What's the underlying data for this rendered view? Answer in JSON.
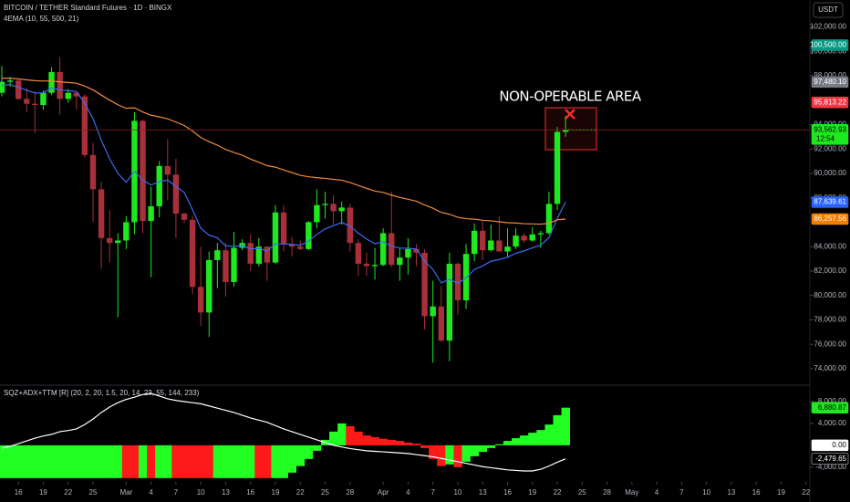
{
  "toolbar": {
    "currency": "USDT"
  },
  "chart_data": [
    {
      "type": "candlestick",
      "title": "BITCOIN / TETHER Standard Futures · 1D · BINGX",
      "subtitle": "4EMA (10, 55, 500, 21)",
      "annotation": "NON-OPERABLE AREA",
      "countdown": "12:54",
      "x": [
        "Feb 14",
        "Feb 15",
        "Feb 16",
        "Feb 17",
        "Feb 18",
        "Feb 19",
        "Feb 20",
        "Feb 21",
        "Feb 22",
        "Feb 23",
        "Feb 24",
        "Feb 25",
        "Feb 26",
        "Feb 27",
        "Feb 28",
        "Mar 1",
        "Mar 2",
        "Mar 3",
        "Mar 4",
        "Mar 5",
        "Mar 6",
        "Mar 7",
        "Mar 8",
        "Mar 9",
        "Mar 10",
        "Mar 11",
        "Mar 12",
        "Mar 13",
        "Mar 14",
        "Mar 15",
        "Mar 16",
        "Mar 17",
        "Mar 18",
        "Mar 19",
        "Mar 20",
        "Mar 21",
        "Mar 22",
        "Mar 23",
        "Mar 24",
        "Mar 25",
        "Mar 26",
        "Mar 27",
        "Mar 28",
        "Mar 29",
        "Mar 30",
        "Mar 31",
        "Apr 1",
        "Apr 2",
        "Apr 3",
        "Apr 4",
        "Apr 5",
        "Apr 6",
        "Apr 7",
        "Apr 8",
        "Apr 9",
        "Apr 10",
        "Apr 11",
        "Apr 12",
        "Apr 13",
        "Apr 14",
        "Apr 15",
        "Apr 16",
        "Apr 17",
        "Apr 18",
        "Apr 19",
        "Apr 20",
        "Apr 21",
        "Apr 22",
        "Apr 23"
      ],
      "open": [
        96600,
        97500,
        97600,
        96100,
        95700,
        95600,
        96600,
        98300,
        96100,
        96600,
        96300,
        91500,
        88700,
        84700,
        84300,
        84500,
        86000,
        94300,
        86100,
        87300,
        90600,
        89900,
        86700,
        86200,
        80700,
        78600,
        82900,
        83700,
        81100,
        83900,
        84300,
        82600,
        84000,
        82700,
        86800,
        84200,
        84000,
        83800,
        86000,
        87400,
        87500,
        86900,
        87200,
        84300,
        82600,
        82400,
        82500,
        85100,
        82500,
        83100,
        83800,
        83500,
        78300,
        79100,
        76300,
        82600,
        79600,
        83400,
        85300,
        83700,
        84500,
        83600,
        84000,
        84900,
        84500,
        85000,
        85100,
        87500,
        93400
      ],
      "high": [
        98800,
        97900,
        97700,
        97000,
        96700,
        96800,
        98700,
        99500,
        96900,
        96700,
        96500,
        92500,
        89300,
        87000,
        85100,
        86500,
        95000,
        94400,
        88900,
        91000,
        92800,
        91200,
        86800,
        86500,
        84000,
        83600,
        84300,
        84300,
        85200,
        84600,
        85000,
        84700,
        84000,
        87400,
        87400,
        84800,
        84500,
        86100,
        88700,
        88500,
        88200,
        87700,
        87500,
        84600,
        83500,
        83900,
        85500,
        88500,
        83900,
        84700,
        84200,
        83800,
        81200,
        80800,
        83500,
        82700,
        84200,
        85900,
        86100,
        85800,
        86500,
        85500,
        85500,
        85100,
        85600,
        85300,
        88500,
        93800,
        94700
      ],
      "low": [
        96300,
        97100,
        96000,
        95000,
        93300,
        95200,
        96400,
        94800,
        95800,
        95200,
        91300,
        86000,
        82200,
        82700,
        78200,
        83800,
        85000,
        85100,
        81500,
        86400,
        87800,
        84700,
        85900,
        80100,
        77500,
        76600,
        80600,
        79900,
        80700,
        83700,
        82000,
        82400,
        81200,
        82600,
        83600,
        83200,
        83700,
        83700,
        85500,
        86300,
        85800,
        85800,
        83600,
        81600,
        81600,
        81300,
        82400,
        82300,
        81200,
        81700,
        82400,
        77200,
        74500,
        76200,
        74600,
        78400,
        78900,
        82800,
        82900,
        83600,
        83600,
        83100,
        83800,
        84300,
        84400,
        83900,
        85000,
        87000,
        93000
      ],
      "close": [
        97500,
        97600,
        96100,
        95700,
        95600,
        96600,
        98300,
        96100,
        96600,
        96300,
        91500,
        88700,
        84700,
        84300,
        84500,
        86000,
        94300,
        86100,
        87300,
        90600,
        89900,
        86700,
        86200,
        80700,
        78600,
        82900,
        83700,
        81100,
        83900,
        84300,
        82600,
        84000,
        82700,
        86800,
        84200,
        84000,
        83800,
        86000,
        87400,
        87500,
        86900,
        87200,
        84300,
        82600,
        82400,
        82500,
        85100,
        82500,
        83100,
        83800,
        83500,
        78300,
        79100,
        76300,
        82600,
        79600,
        83400,
        85300,
        83700,
        84500,
        83600,
        84000,
        84900,
        84500,
        85000,
        85100,
        87500,
        93400,
        93562.93
      ],
      "up_color": "#1ee81e",
      "down_color": "#a8303a",
      "series": [
        {
          "color": "#3b6cf0",
          "values": [
            97200,
            97270,
            97050,
            96800,
            96580,
            96590,
            96990,
            96830,
            96780,
            96700,
            95750,
            94480,
            92700,
            91200,
            89990,
            89270,
            90180,
            89440,
            89050,
            89330,
            89440,
            88940,
            88440,
            87030,
            85500,
            84940,
            84720,
            84060,
            84030,
            84080,
            83810,
            83850,
            83640,
            84220,
            84220,
            84180,
            84110,
            84450,
            84990,
            85450,
            85710,
            85980,
            85670,
            85110,
            84620,
            84240,
            84400,
            84050,
            83880,
            83870,
            83800,
            82800,
            82130,
            81030,
            81320,
            80990,
            81430,
            82130,
            82420,
            82800,
            82940,
            83130,
            83450,
            83650,
            83900,
            84120,
            84740,
            86320,
            87639.61
          ]
        },
        {
          "color": "#f08a3c",
          "values": [
            97800,
            97790,
            97730,
            97660,
            97590,
            97560,
            97580,
            97490,
            97440,
            97380,
            97150,
            96840,
            96410,
            96000,
            95620,
            95330,
            95370,
            95030,
            94760,
            94630,
            94470,
            94200,
            93930,
            93460,
            92940,
            92600,
            92310,
            91950,
            91710,
            91490,
            91170,
            90910,
            90630,
            90510,
            90280,
            90060,
            89840,
            89720,
            89650,
            89590,
            89510,
            89440,
            89250,
            89010,
            88770,
            88550,
            88440,
            88220,
            88030,
            87880,
            87720,
            87410,
            87150,
            86800,
            86650,
            86400,
            86290,
            86250,
            86160,
            86110,
            86030,
            85960,
            85930,
            85880,
            85860,
            85840,
            85900,
            86200,
            86257.56
          ]
        }
      ],
      "ylim": [
        72800,
        103900
      ],
      "yticks": [
        {
          "value": 102000,
          "label": "102,000.00"
        },
        {
          "value": 100000,
          "label": "100,000.00"
        },
        {
          "value": 98000,
          "label": "98,000.00"
        },
        {
          "value": 94000,
          "label": "94,000.00"
        },
        {
          "value": 92000,
          "label": "92,000.00"
        },
        {
          "value": 90000,
          "label": "90,000.00"
        },
        {
          "value": 88000,
          "label": "88,000.00"
        },
        {
          "value": 84000,
          "label": "84,000.00"
        },
        {
          "value": 82000,
          "label": "82,000.00"
        },
        {
          "value": 80000,
          "label": "80,000.00"
        },
        {
          "value": 78000,
          "label": "78,000.00"
        },
        {
          "value": 76000,
          "label": "76,000.00"
        },
        {
          "value": 74000,
          "label": "74,000.00"
        }
      ],
      "xticks": [
        {
          "value": "Feb 16",
          "label": "16"
        },
        {
          "value": "Feb 19",
          "label": "19"
        },
        {
          "value": "Feb 22",
          "label": "22"
        },
        {
          "value": "Feb 25",
          "label": "25"
        },
        {
          "value": "Mar 1",
          "label": "Mar"
        },
        {
          "value": "Mar 4",
          "label": "4"
        },
        {
          "value": "Mar 7",
          "label": "7"
        },
        {
          "value": "Mar 10",
          "label": "10"
        },
        {
          "value": "Mar 13",
          "label": "13"
        },
        {
          "value": "Mar 16",
          "label": "16"
        },
        {
          "value": "Mar 19",
          "label": "19"
        },
        {
          "value": "Mar 22",
          "label": "22"
        },
        {
          "value": "Mar 25",
          "label": "25"
        },
        {
          "value": "Mar 28",
          "label": "28"
        },
        {
          "value": "Apr 1",
          "label": "Apr"
        },
        {
          "value": "Apr 4",
          "label": "4"
        },
        {
          "value": "Apr 7",
          "label": "7"
        },
        {
          "value": "Apr 10",
          "label": "10"
        },
        {
          "value": "Apr 13",
          "label": "13"
        },
        {
          "value": "Apr 16",
          "label": "16"
        },
        {
          "value": "Apr 19",
          "label": "19"
        },
        {
          "value": "Apr 22",
          "label": "22"
        },
        {
          "value": "Apr 25",
          "label": "25"
        },
        {
          "value": "Apr 28",
          "label": "28"
        },
        {
          "value": "May 1",
          "label": "May"
        },
        {
          "value": "May 4",
          "label": "4"
        },
        {
          "value": "May 7",
          "label": "7"
        },
        {
          "value": "May 10",
          "label": "10"
        },
        {
          "value": "May 13",
          "label": "13"
        },
        {
          "value": "May 16",
          "label": "16"
        },
        {
          "value": "May 19",
          "label": "19"
        },
        {
          "value": "May 22",
          "label": "22"
        }
      ],
      "grid": false,
      "price_labels": [
        {
          "value": 100500,
          "label": "100,500.00",
          "color": "#089981",
          "text_color": "#ffffff"
        },
        {
          "value": 97480.1,
          "label": "97,480.10",
          "color": "#787b86",
          "text_color": "#ffffff"
        },
        {
          "value": 95813.22,
          "label": "95,813.22",
          "color": "#f23645",
          "text_color": "#ffffff"
        },
        {
          "value": 93562.93,
          "label": "93,562.93",
          "color": "#1ee81e",
          "text_color": "#000000"
        },
        {
          "value": 87639.61,
          "label": "87,639.61",
          "color": "#2962ff",
          "text_color": "#ffffff"
        },
        {
          "value": 86257.56,
          "label": "86,257.56",
          "color": "#f57c00",
          "text_color": "#ffffff"
        }
      ]
    },
    {
      "type": "bar",
      "title": "SQZ+ADX+TTM [R] (20, 2, 20, 1.5, 20, 14, 23, 55, 144, 233)",
      "values": [
        -6000,
        -6000,
        -6000,
        -6000,
        -6000,
        -6000,
        -6000,
        -6000,
        -6000,
        -6000,
        -6000,
        -6000,
        -6000,
        -6000,
        -6000,
        -6000,
        -6000,
        -6000,
        -6000,
        -6000,
        -6000,
        -6000,
        -6000,
        -6000,
        -6000,
        -6000,
        -6000,
        -6000,
        -6000,
        -6000,
        -6000,
        -6000,
        -6000,
        -6000,
        -6000,
        -5000,
        -3800,
        -2500,
        -1000,
        1000,
        2500,
        4000,
        3500,
        2500,
        1800,
        1500,
        1200,
        1000,
        800,
        500,
        300,
        -500,
        -2500,
        -3800,
        -3500,
        -4000,
        -3000,
        -2000,
        -1200,
        -500,
        200,
        800,
        1300,
        1800,
        2300,
        2800,
        3800,
        5500,
        6880.87
      ],
      "colors": [
        "#22ff22",
        "#22ff22",
        "#22ff22",
        "#22ff22",
        "#22ff22",
        "#22ff22",
        "#22ff22",
        "#22ff22",
        "#22ff22",
        "#22ff22",
        "#22ff22",
        "#22ff22",
        "#22ff22",
        "#22ff22",
        "#22ff22",
        "#ff1a1a",
        "#ff1a1a",
        "#22ff22",
        "#ff1a1a",
        "#22ff22",
        "#22ff22",
        "#ff1a1a",
        "#ff1a1a",
        "#ff1a1a",
        "#ff1a1a",
        "#ff1a1a",
        "#22ff22",
        "#22ff22",
        "#22ff22",
        "#22ff22",
        "#22ff22",
        "#ff1a1a",
        "#ff1a1a",
        "#22ff22",
        "#22ff22",
        "#22ff22",
        "#22ff22",
        "#22ff22",
        "#22ff22",
        "#22ff22",
        "#22ff22",
        "#22ff22",
        "#ff1a1a",
        "#ff1a1a",
        "#ff1a1a",
        "#ff1a1a",
        "#ff1a1a",
        "#ff1a1a",
        "#ff1a1a",
        "#ff1a1a",
        "#ff1a1a",
        "#ff1a1a",
        "#ff1a1a",
        "#ff1a1a",
        "#22ff22",
        "#ff1a1a",
        "#22ff22",
        "#22ff22",
        "#22ff22",
        "#22ff22",
        "#22ff22",
        "#22ff22",
        "#22ff22",
        "#22ff22",
        "#22ff22",
        "#22ff22",
        "#22ff22",
        "#22ff22",
        "#22ff22"
      ],
      "series": [
        {
          "color": "#ffffff",
          "values": [
            -500,
            -200,
            300,
            800,
            1300,
            1700,
            2000,
            2500,
            2700,
            3000,
            3800,
            4800,
            6000,
            7000,
            7800,
            8400,
            8800,
            9300,
            9500,
            9000,
            8500,
            8200,
            8000,
            7800,
            7600,
            7200,
            6800,
            6400,
            6000,
            5500,
            5000,
            4600,
            4200,
            3600,
            3000,
            2500,
            2000,
            1500,
            1000,
            500,
            0,
            -300,
            -600,
            -800,
            -1000,
            -1100,
            -1200,
            -1300,
            -1400,
            -1500,
            -1700,
            -1900,
            -2100,
            -2400,
            -2700,
            -3000,
            -3300,
            -3600,
            -3900,
            -4100,
            -4300,
            -4500,
            -4600,
            -4700,
            -4700,
            -4400,
            -3800,
            -3100,
            -2479.65
          ]
        }
      ],
      "ylim": [
        -6700,
        10500
      ],
      "yticks": [
        {
          "value": 8000,
          "label": "8,000.00"
        },
        {
          "value": 4000,
          "label": "4,000.00"
        },
        {
          "value": -4000,
          "label": "-4,000.00"
        }
      ],
      "price_labels": [
        {
          "value": 6880.87,
          "label": "6,880.87",
          "color": "#1ee81e",
          "text_color": "#000000"
        },
        {
          "value": 0,
          "label": "0.00",
          "color": "#ffffff",
          "text_color": "#000000"
        },
        {
          "value": -2479.65,
          "label": "-2,479.65",
          "color": "#000000",
          "text_color": "#ffffff"
        }
      ]
    }
  ]
}
